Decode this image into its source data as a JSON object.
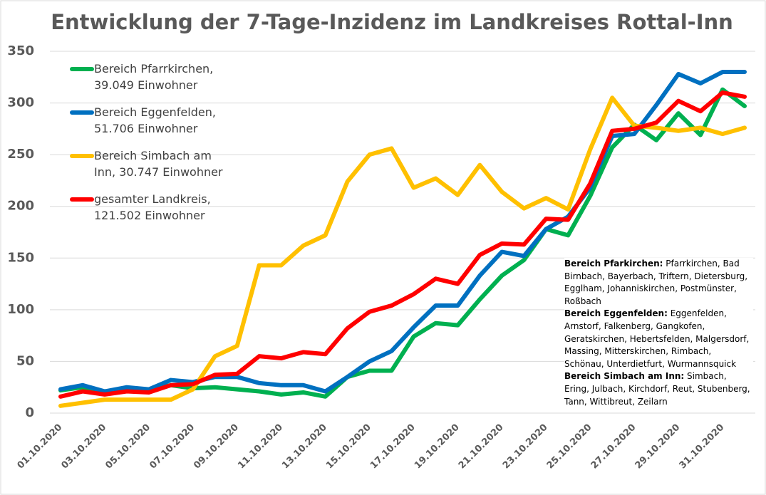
{
  "chart_data": {
    "type": "line",
    "title": "Entwicklung der 7-Tage-Inzidenz im Landkreises Rottal-Inn",
    "categories": [
      "01.10.2020",
      null,
      "03.10.2020",
      null,
      "05.10.2020",
      null,
      "07.10.2020",
      null,
      "09.10.2020",
      null,
      "11.10.2020",
      null,
      "13.10.2020",
      null,
      "15.10.2020",
      null,
      "17.10.2020",
      null,
      "19.10.2020",
      null,
      "21.10.2020",
      null,
      "23.10.2020",
      null,
      "25.10.2020",
      null,
      "27.10.2020",
      null,
      "29.10.2020",
      null,
      "31.10.2020",
      null
    ],
    "series": [
      {
        "name": "Bereich Pfarrkirchen, 39.049 Einwohner",
        "color": "#00b050",
        "values": [
          22,
          25,
          21,
          23,
          22,
          27,
          24,
          25,
          23,
          21,
          18,
          20,
          16,
          35,
          41,
          41,
          74,
          87,
          85,
          110,
          133,
          148,
          178,
          172,
          210,
          257,
          279,
          264,
          290,
          269,
          313,
          297
        ]
      },
      {
        "name": "Bereich Eggenfelden, 51.706 Einwohner",
        "color": "#0070c0",
        "values": [
          23,
          27,
          21,
          25,
          23,
          32,
          30,
          35,
          35,
          29,
          27,
          27,
          21,
          35,
          50,
          60,
          83,
          104,
          104,
          133,
          156,
          152,
          178,
          190,
          218,
          268,
          270,
          298,
          328,
          319,
          330,
          330
        ]
      },
      {
        "name": "Bereich Simbach am Inn, 30.747 Einwohner",
        "color": "#ffc000",
        "values": [
          7,
          10,
          13,
          13,
          13,
          13,
          23,
          55,
          65,
          143,
          143,
          162,
          172,
          224,
          250,
          256,
          218,
          227,
          211,
          240,
          214,
          198,
          208,
          197,
          255,
          305,
          278,
          276,
          273,
          276,
          270,
          276
        ]
      },
      {
        "name": "gesamter Landkreis, 121.502 Einwohner",
        "color": "#ff0000",
        "values": [
          16,
          21,
          18,
          21,
          20,
          27,
          28,
          37,
          38,
          55,
          53,
          59,
          57,
          82,
          98,
          104,
          115,
          130,
          125,
          153,
          164,
          163,
          188,
          187,
          222,
          273,
          275,
          281,
          302,
          292,
          310,
          306
        ]
      }
    ],
    "ylim": [
      0,
      350
    ],
    "yticks": [
      0,
      50,
      100,
      150,
      200,
      250,
      300,
      350
    ],
    "grid": true,
    "annotation": [
      {
        "title": "Bereich Pfarkirchen:",
        "text": "Pfarrkirchen, Bad Birnbach, Bayerbach, Triftern, Dietersburg, Egglham, Johanniskirchen, Postmünster, Roßbach"
      },
      {
        "title": "Bereich Eggenfelden:",
        "text": "Eggenfelden, Arnstorf, Falkenberg, Gangkofen, Geratskirchen, Hebertsfelden, Malgersdorf, Massing, Mitterskirchen, Rimbach, Schönau, Unterdietfurt, Wurmannsquick"
      },
      {
        "title": "Bereich Simbach am Inn:",
        "text": "Simbach, Ering, Julbach, Kirchdorf, Reut, Stubenberg, Tann, Wittibreut, Zeilarn"
      }
    ]
  }
}
